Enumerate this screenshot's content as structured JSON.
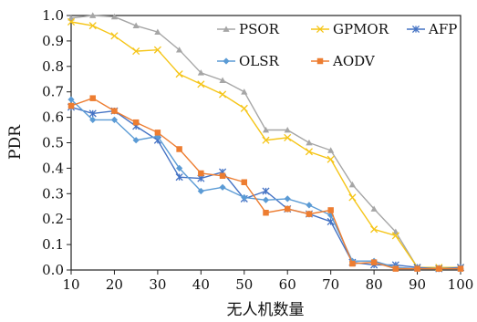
{
  "chart_data": {
    "type": "line",
    "title": "",
    "xlabel": "无人机数量",
    "ylabel": "PDR",
    "xlim": [
      10,
      100
    ],
    "ylim": [
      0,
      1.0
    ],
    "xticks": [
      10,
      20,
      30,
      40,
      50,
      60,
      70,
      80,
      90,
      100
    ],
    "yticks": [
      0.0,
      0.1,
      0.2,
      0.3,
      0.4,
      0.5,
      0.6,
      0.7,
      0.8,
      0.9,
      1.0
    ],
    "ytick_labels": [
      "0.0",
      "0.1",
      "0.2",
      "0.3",
      "0.4",
      "0.5",
      "0.6",
      "0.7",
      "0.8",
      "0.9",
      "1.0"
    ],
    "grid": false,
    "legend_position": "top-right",
    "x": [
      10,
      15,
      20,
      25,
      30,
      35,
      40,
      45,
      50,
      55,
      60,
      65,
      70,
      75,
      80,
      85,
      90,
      95,
      100
    ],
    "series": [
      {
        "name": "PSOR",
        "color": "#a6a6a6",
        "marker": "triangle",
        "values": [
          0.99,
          1.0,
          0.995,
          0.96,
          0.935,
          0.865,
          0.775,
          0.745,
          0.7,
          0.55,
          0.55,
          0.5,
          0.47,
          0.335,
          0.24,
          0.15,
          0.01,
          0.01,
          0.01
        ]
      },
      {
        "name": "GPMOR",
        "color": "#f5c518",
        "marker": "x",
        "values": [
          0.975,
          0.96,
          0.92,
          0.86,
          0.865,
          0.77,
          0.73,
          0.69,
          0.635,
          0.51,
          0.52,
          0.465,
          0.435,
          0.285,
          0.16,
          0.135,
          0.01,
          0.01,
          0.01
        ]
      },
      {
        "name": "AFP",
        "color": "#4472c4",
        "marker": "star",
        "values": [
          0.64,
          0.615,
          0.625,
          0.565,
          0.51,
          0.365,
          0.36,
          0.385,
          0.28,
          0.31,
          0.24,
          0.22,
          0.19,
          0.03,
          0.02,
          0.02,
          0.01,
          0.005,
          0.01
        ]
      },
      {
        "name": "OLSR",
        "color": "#5b9bd5",
        "marker": "diamond",
        "values": [
          0.67,
          0.59,
          0.59,
          0.51,
          0.525,
          0.4,
          0.31,
          0.325,
          0.285,
          0.275,
          0.28,
          0.255,
          0.215,
          0.035,
          0.035,
          0.01,
          0.005,
          0.005,
          0.005
        ]
      },
      {
        "name": "AODV",
        "color": "#ed7d31",
        "marker": "square",
        "values": [
          0.645,
          0.675,
          0.625,
          0.58,
          0.54,
          0.475,
          0.38,
          0.37,
          0.345,
          0.225,
          0.24,
          0.22,
          0.235,
          0.025,
          0.03,
          0.005,
          0.005,
          0.005,
          0.005
        ]
      }
    ],
    "legend_rows": [
      [
        "PSOR",
        "GPMOR",
        "AFP"
      ],
      [
        "OLSR",
        "AODV"
      ]
    ]
  }
}
